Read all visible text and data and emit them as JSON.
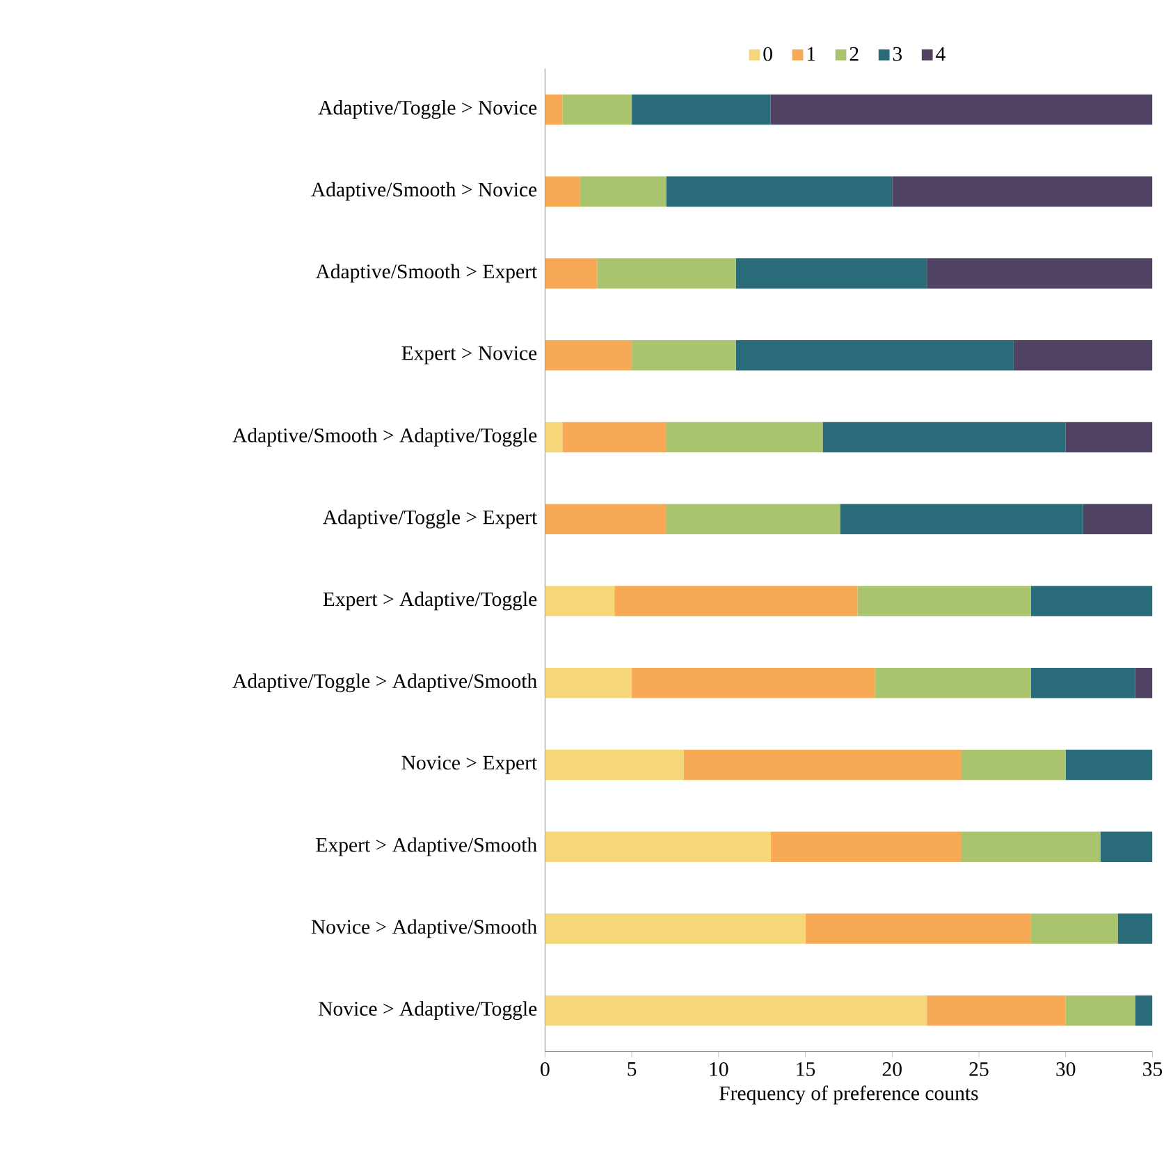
{
  "chart_data": {
    "type": "bar",
    "orientation": "horizontal",
    "stacked": true,
    "xlabel": "Frequency of preference counts",
    "xlim": [
      0,
      35
    ],
    "xticks": [
      0,
      5,
      10,
      15,
      20,
      25,
      30,
      35
    ],
    "legend": "top",
    "grid": false,
    "categories": [
      "Adaptive/Toggle > Novice",
      "Adaptive/Smooth > Novice",
      "Adaptive/Smooth > Expert",
      "Expert > Novice",
      "Adaptive/Smooth > Adaptive/Toggle",
      "Adaptive/Toggle > Expert",
      "Expert > Adaptive/Toggle",
      "Adaptive/Toggle > Adaptive/Smooth",
      "Novice > Expert",
      "Expert > Adaptive/Smooth",
      "Novice > Adaptive/Smooth",
      "Novice > Adaptive/Toggle"
    ],
    "series": [
      {
        "name": "0",
        "color": "#f5d77a",
        "values": [
          0,
          0,
          0,
          0,
          1,
          0,
          4,
          5,
          8,
          13,
          15,
          22
        ]
      },
      {
        "name": "1",
        "color": "#f7a955",
        "values": [
          1,
          2,
          3,
          5,
          6,
          7,
          14,
          14,
          16,
          11,
          13,
          8
        ]
      },
      {
        "name": "2",
        "color": "#a9c46c",
        "values": [
          4,
          5,
          8,
          6,
          9,
          10,
          10,
          9,
          6,
          8,
          5,
          4
        ]
      },
      {
        "name": "3",
        "color": "#2a6b7a",
        "values": [
          8,
          13,
          11,
          16,
          14,
          14,
          7,
          6,
          5,
          3,
          2,
          1
        ]
      },
      {
        "name": "4",
        "color": "#4f4263",
        "values": [
          22,
          15,
          13,
          8,
          5,
          4,
          0,
          1,
          0,
          0,
          0,
          0
        ]
      }
    ]
  }
}
